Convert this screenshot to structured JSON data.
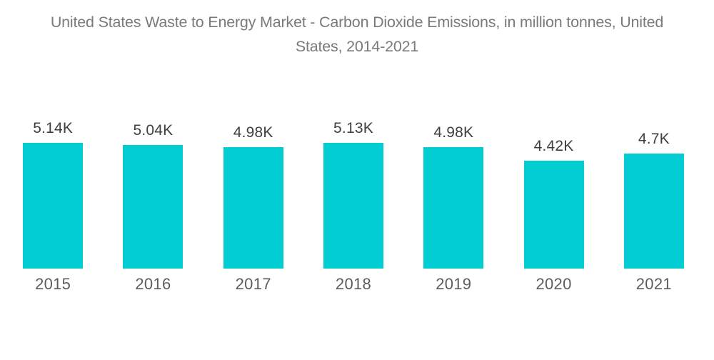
{
  "chart_data": {
    "type": "bar",
    "title": "United States Waste to Energy Market - Carbon Dioxide Emissions, in million tonnes, United States, 2014-2021",
    "title_lines": [
      "United States Waste to Energy Market - Carbon Dioxide Emissions, in million tonnes, United",
      "States, 2014-2021"
    ],
    "series_name": "Carbon Dioxide Emissions",
    "unit": "million tonnes",
    "categories": [
      "2015",
      "2016",
      "2017",
      "2018",
      "2019",
      "2020",
      "2021"
    ],
    "values": [
      5140,
      5040,
      4980,
      5130,
      4980,
      4420,
      4700
    ],
    "value_labels": [
      "5.14K",
      "5.04K",
      "4.98K",
      "5.13K",
      "4.98K",
      "4.42K",
      "4.7K"
    ],
    "ylim": [
      0,
      5140
    ],
    "grid": false,
    "legend": "none",
    "colors": {
      "bar": "#00CCD2",
      "title_text": "#787A7C",
      "value_label_text": "#3E3F41",
      "axis_label_text": "#5C5D5F"
    }
  }
}
